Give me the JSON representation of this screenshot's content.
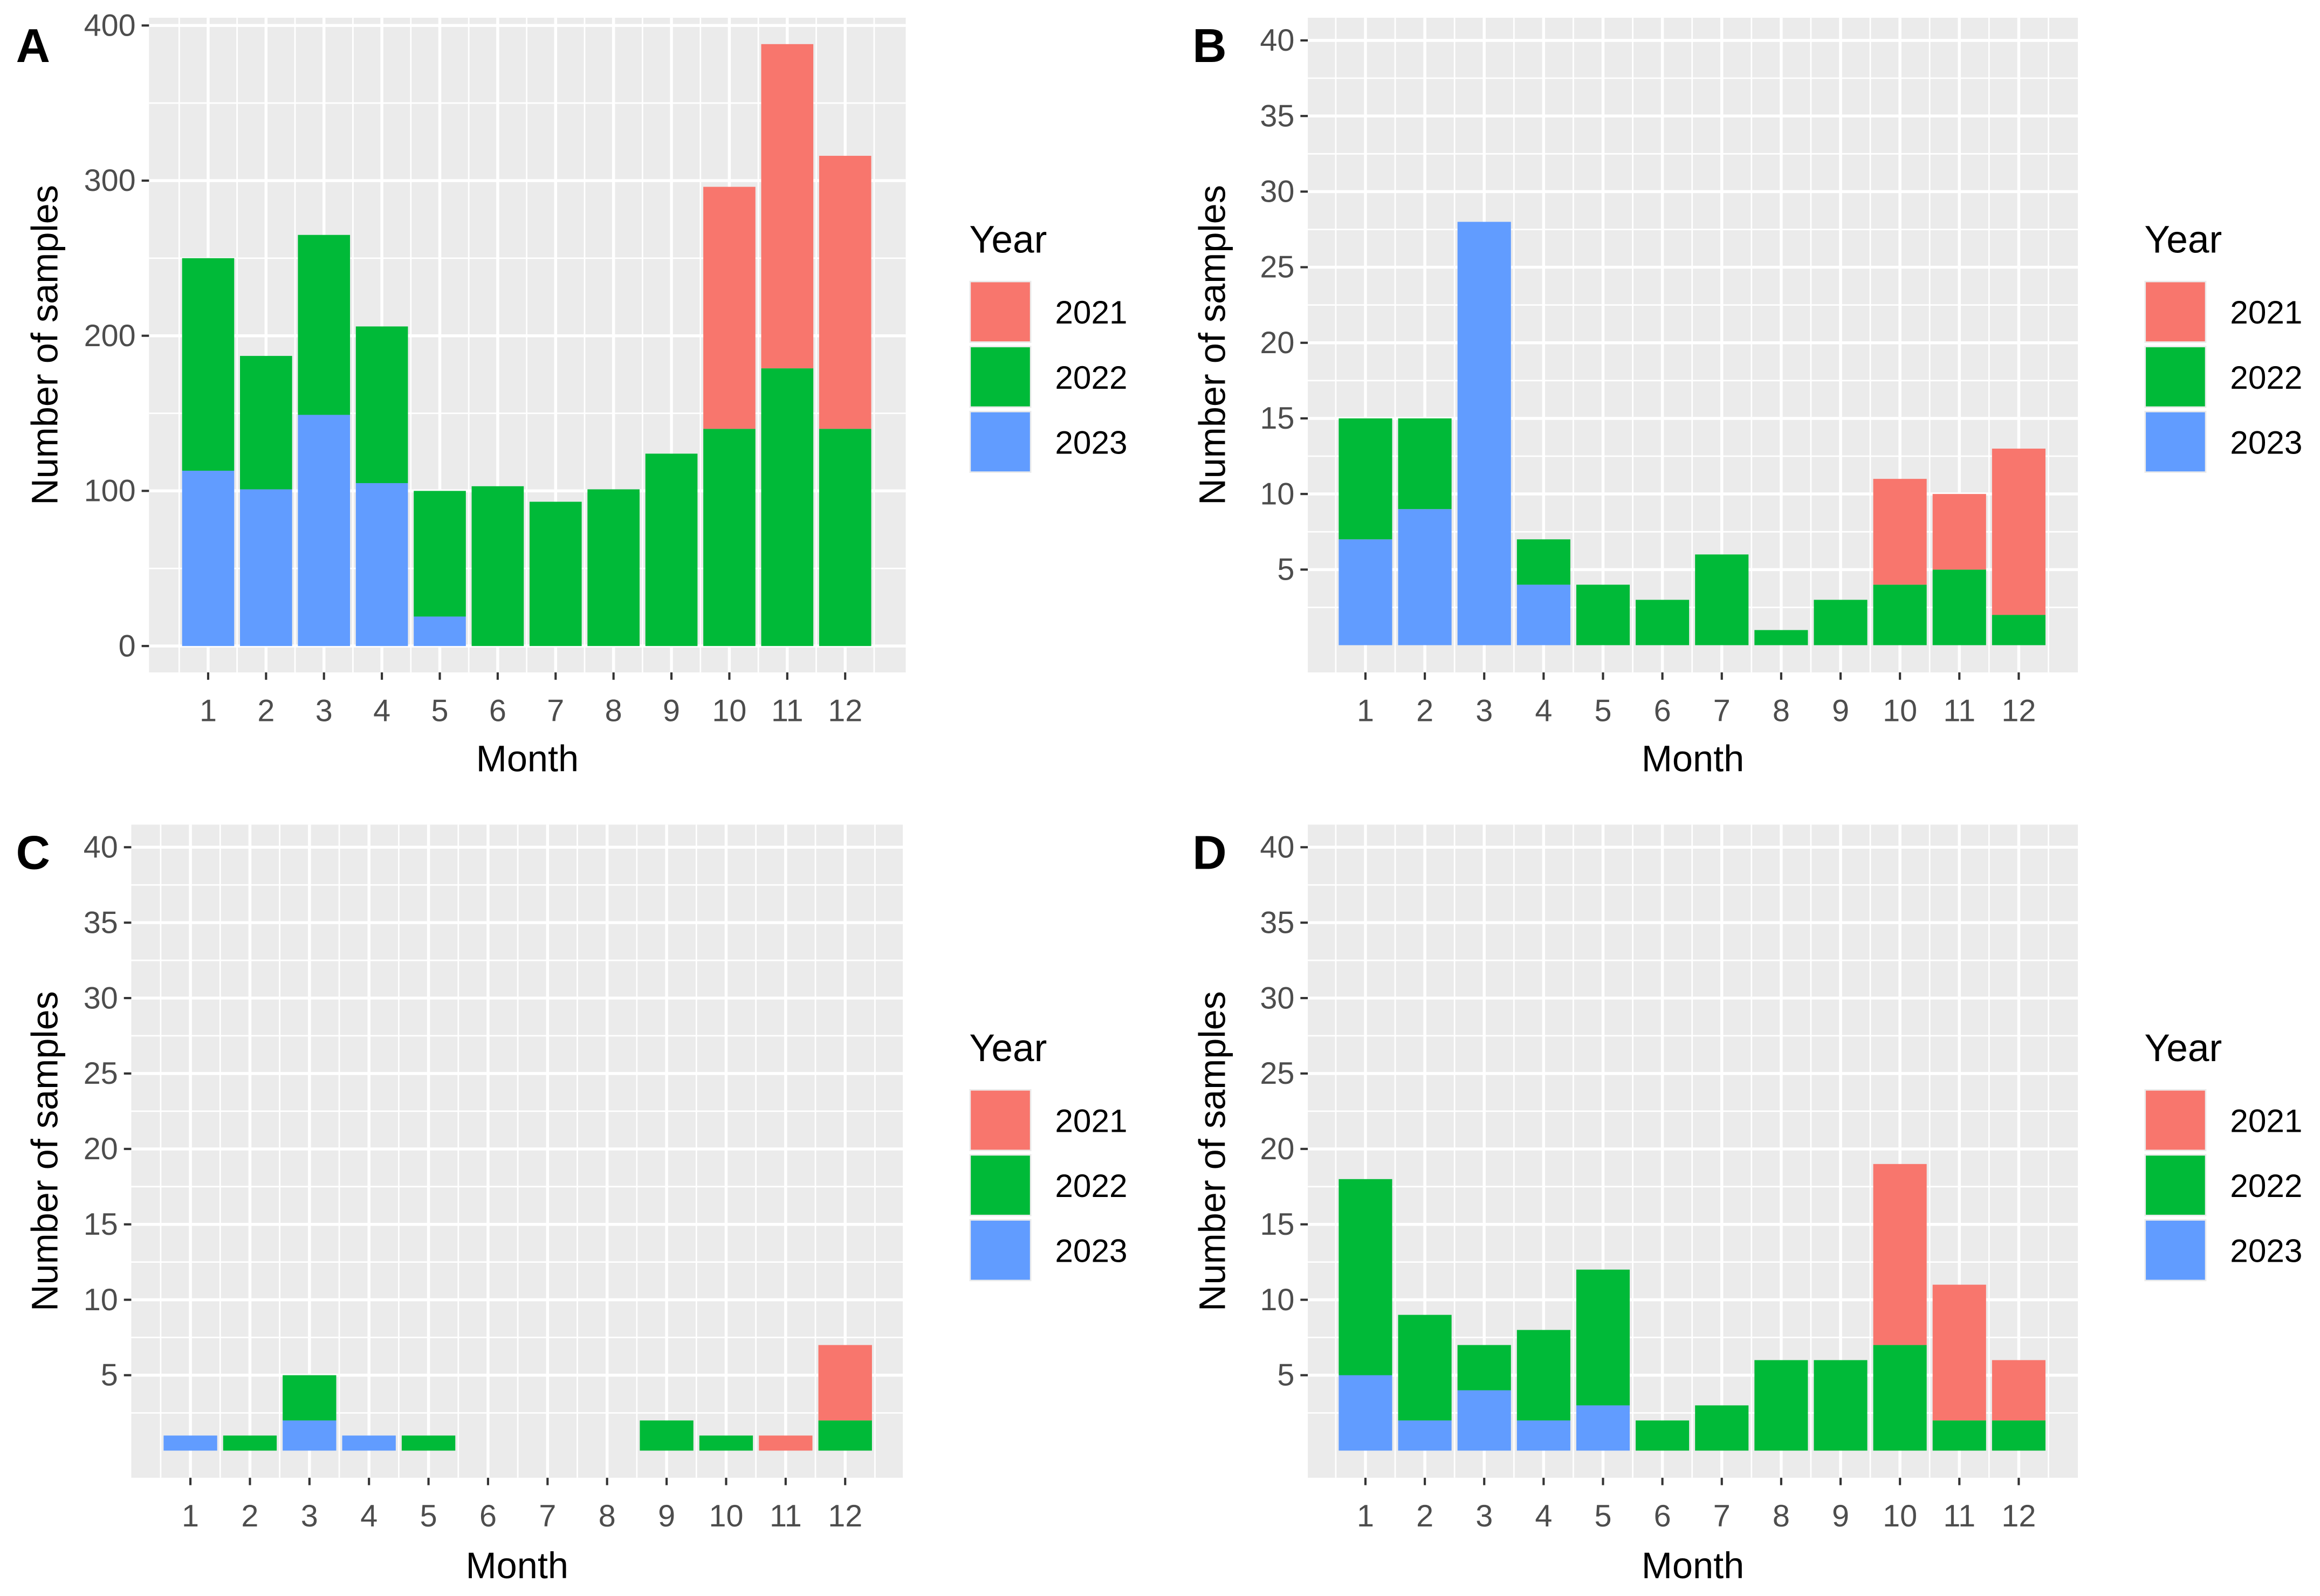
{
  "colors": {
    "2021": "#F8766D",
    "2022": "#00BA38",
    "2023": "#619CFF",
    "panel_bg": "#EBEBEB",
    "grid": "#FFFFFF"
  },
  "chart_data": [
    {
      "panel": "A",
      "type": "bar",
      "stacked": true,
      "xlabel": "Month",
      "ylabel": "Number of samples",
      "categories": [
        "1",
        "2",
        "3",
        "4",
        "5",
        "6",
        "7",
        "8",
        "9",
        "10",
        "11",
        "12"
      ],
      "yticks": [
        "0",
        "100",
        "200",
        "300",
        "400"
      ],
      "ytick_values": [
        0,
        100,
        200,
        300,
        400
      ],
      "ylim": [
        -17,
        405
      ],
      "legend": {
        "title": "Year",
        "entries": [
          "2021",
          "2022",
          "2023"
        ],
        "placement": "right"
      },
      "series": [
        {
          "name": "2021",
          "values": [
            0,
            0,
            0,
            0,
            0,
            0,
            0,
            0,
            0,
            156,
            209,
            176
          ]
        },
        {
          "name": "2022",
          "values": [
            137,
            86,
            116,
            101,
            81,
            103,
            93,
            101,
            124,
            140,
            179,
            140
          ]
        },
        {
          "name": "2023",
          "values": [
            113,
            101,
            149,
            105,
            19,
            0,
            0,
            0,
            0,
            0,
            0,
            0
          ]
        }
      ]
    },
    {
      "panel": "B",
      "type": "bar",
      "stacked": true,
      "xlabel": "Month",
      "ylabel": "Number of samples",
      "categories": [
        "1",
        "2",
        "3",
        "4",
        "5",
        "6",
        "7",
        "8",
        "9",
        "10",
        "11",
        "12"
      ],
      "yticks": [
        "5",
        "10",
        "15",
        "20",
        "25",
        "30",
        "35",
        "40"
      ],
      "ytick_values": [
        5,
        10,
        15,
        20,
        25,
        30,
        35,
        40
      ],
      "ylim": [
        -1.8,
        41.5
      ],
      "legend": {
        "title": "Year",
        "entries": [
          "2021",
          "2022",
          "2023"
        ],
        "placement": "right"
      },
      "series": [
        {
          "name": "2021",
          "values": [
            0,
            0,
            0,
            0,
            0,
            0,
            0,
            0,
            0,
            7,
            5,
            11
          ]
        },
        {
          "name": "2022",
          "values": [
            8,
            6,
            0,
            3,
            4,
            3,
            6,
            1,
            3,
            4,
            5,
            2
          ]
        },
        {
          "name": "2023",
          "values": [
            7,
            9,
            28,
            4,
            0,
            0,
            0,
            0,
            0,
            0,
            0,
            0
          ]
        }
      ]
    },
    {
      "panel": "C",
      "type": "bar",
      "stacked": true,
      "xlabel": "Month",
      "ylabel": "Number of samples",
      "categories": [
        "1",
        "2",
        "3",
        "4",
        "5",
        "6",
        "7",
        "8",
        "9",
        "10",
        "11",
        "12"
      ],
      "yticks": [
        "5",
        "10",
        "15",
        "20",
        "25",
        "30",
        "35",
        "40"
      ],
      "ytick_values": [
        5,
        10,
        15,
        20,
        25,
        30,
        35,
        40
      ],
      "ylim": [
        -1.8,
        41.5
      ],
      "legend": {
        "title": "Year",
        "entries": [
          "2021",
          "2022",
          "2023"
        ],
        "placement": "right"
      },
      "series": [
        {
          "name": "2021",
          "values": [
            0,
            0,
            0,
            0,
            0,
            0,
            0,
            0,
            0,
            0,
            1,
            5
          ]
        },
        {
          "name": "2022",
          "values": [
            0,
            1,
            3,
            0,
            1,
            0,
            0,
            0,
            2,
            1,
            0,
            2
          ]
        },
        {
          "name": "2023",
          "values": [
            1,
            0,
            2,
            1,
            0,
            0,
            0,
            0,
            0,
            0,
            0,
            0
          ]
        }
      ]
    },
    {
      "panel": "D",
      "type": "bar",
      "stacked": true,
      "xlabel": "Month",
      "ylabel": "Number of samples",
      "categories": [
        "1",
        "2",
        "3",
        "4",
        "5",
        "6",
        "7",
        "8",
        "9",
        "10",
        "11",
        "12"
      ],
      "yticks": [
        "5",
        "10",
        "15",
        "20",
        "25",
        "30",
        "35",
        "40"
      ],
      "ytick_values": [
        5,
        10,
        15,
        20,
        25,
        30,
        35,
        40
      ],
      "ylim": [
        -1.8,
        41.5
      ],
      "legend": {
        "title": "Year",
        "entries": [
          "2021",
          "2022",
          "2023"
        ],
        "placement": "right"
      },
      "series": [
        {
          "name": "2021",
          "values": [
            0,
            0,
            0,
            0,
            0,
            0,
            0,
            0,
            0,
            12,
            9,
            4
          ]
        },
        {
          "name": "2022",
          "values": [
            13,
            7,
            3,
            6,
            9,
            2,
            3,
            6,
            6,
            7,
            2,
            2
          ]
        },
        {
          "name": "2023",
          "values": [
            5,
            2,
            4,
            2,
            3,
            0,
            0,
            0,
            0,
            0,
            0,
            0
          ]
        }
      ]
    }
  ]
}
